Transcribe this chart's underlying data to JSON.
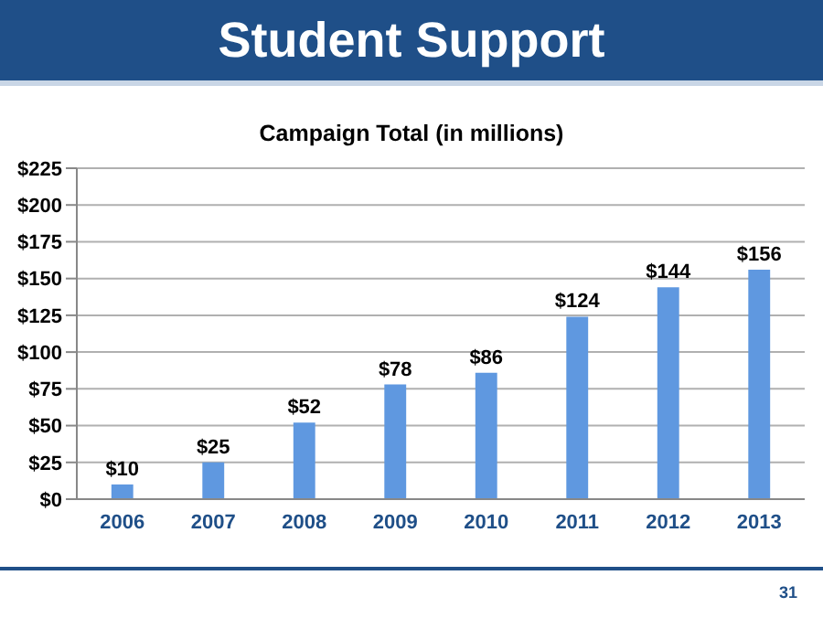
{
  "chart_data": {
    "type": "bar",
    "title": "Student Support",
    "subtitle": "Campaign Total (in millions)",
    "categories": [
      "2006",
      "2007",
      "2008",
      "2009",
      "2010",
      "2011",
      "2012",
      "2013"
    ],
    "values": [
      10,
      25,
      52,
      78,
      86,
      124,
      144,
      156
    ],
    "value_labels": [
      "$10",
      "$25",
      "$52",
      "$78",
      "$86",
      "$124",
      "$144",
      "$156"
    ],
    "color": "#5f98e0",
    "ylim": [
      0,
      225
    ],
    "yticks": [
      {
        "value": 0,
        "label": "$0"
      },
      {
        "value": 25,
        "label": "$25"
      },
      {
        "value": 50,
        "label": "$50"
      },
      {
        "value": 75,
        "label": "$75"
      },
      {
        "value": 100,
        "label": "$100"
      },
      {
        "value": 125,
        "label": "$125"
      },
      {
        "value": 150,
        "label": "$150"
      },
      {
        "value": 175,
        "label": "$175"
      },
      {
        "value": 200,
        "label": "$200"
      },
      {
        "value": 225,
        "label": "$225"
      }
    ],
    "grid": "y",
    "annotations": [
      "31"
    ]
  }
}
